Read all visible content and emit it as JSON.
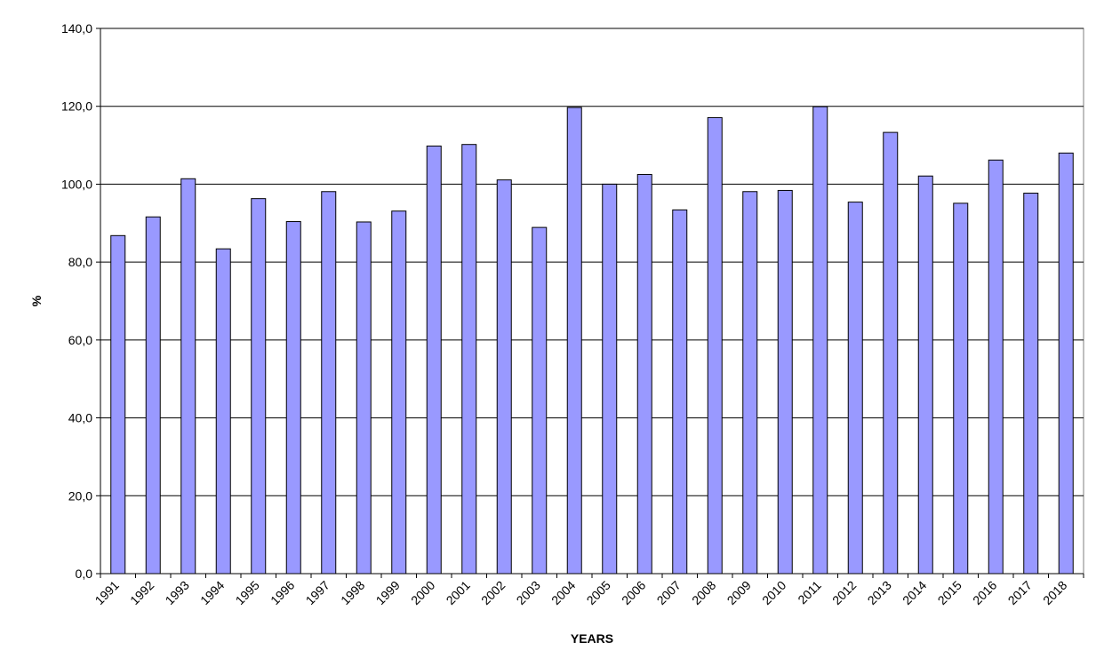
{
  "chart_data": {
    "type": "bar",
    "title": "",
    "xlabel": "YEARS",
    "ylabel": "%",
    "ylim": [
      0,
      140
    ],
    "yticks": [
      "0,0",
      "20,0",
      "40,0",
      "60,0",
      "80,0",
      "100,0",
      "120,0",
      "140,0"
    ],
    "grid": true,
    "categories": [
      "1991",
      "1992",
      "1993",
      "1994",
      "1995",
      "1996",
      "1997",
      "1998",
      "1999",
      "2000",
      "2001",
      "2002",
      "2003",
      "2004",
      "2005",
      "2006",
      "2007",
      "2008",
      "2009",
      "2010",
      "2011",
      "2012",
      "2013",
      "2014",
      "2015",
      "2016",
      "2017",
      "2018"
    ],
    "series": [
      {
        "values": [
          86.8,
          91.6,
          101.4,
          83.4,
          96.3,
          90.4,
          98.1,
          90.3,
          93.1,
          109.8,
          110.2,
          101.1,
          88.9,
          119.7,
          100.0,
          102.5,
          93.4,
          117.1,
          98.1,
          98.4,
          119.9,
          95.4,
          113.3,
          102.1,
          95.1,
          106.2,
          97.7,
          108.0
        ]
      }
    ],
    "colors": {
      "bar_fill": "#9999ff",
      "bar_stroke": "#000000",
      "grid": "#000000"
    }
  }
}
